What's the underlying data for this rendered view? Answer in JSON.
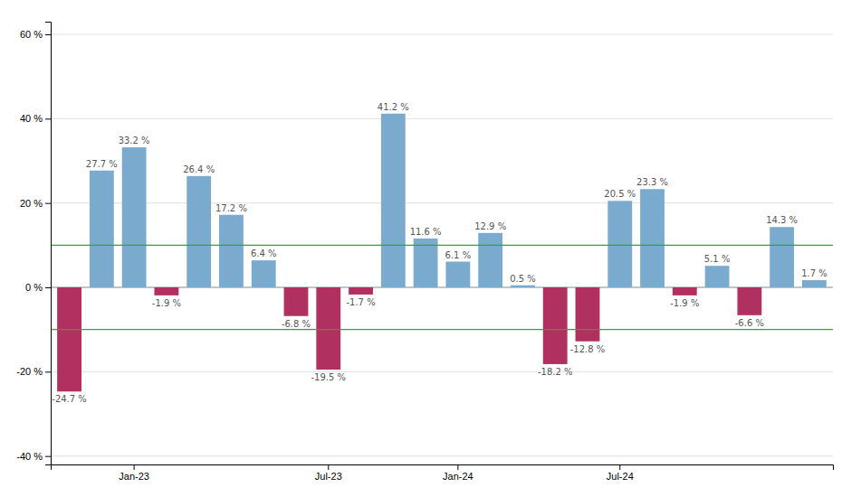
{
  "chart_data": {
    "type": "bar",
    "categories": [
      null,
      null,
      "Jan-23",
      null,
      null,
      null,
      null,
      null,
      "Jul-23",
      null,
      null,
      null,
      "Jan-24",
      null,
      null,
      null,
      null,
      "Jul-24",
      null,
      null,
      null,
      null,
      null,
      null
    ],
    "values": [
      -24.7,
      27.7,
      33.2,
      -1.9,
      26.4,
      17.2,
      6.4,
      -6.8,
      -19.5,
      -1.7,
      41.2,
      11.6,
      6.1,
      12.9,
      0.5,
      -18.2,
      -12.8,
      20.5,
      23.3,
      -1.9,
      5.1,
      -6.6,
      14.3,
      1.7
    ],
    "value_labels": [
      "-24.7 %",
      "27.7 %",
      "33.2 %",
      "-1.9 %",
      "26.4 %",
      "17.2 %",
      "6.4 %",
      "-6.8 %",
      "-19.5 %",
      "-1.7 %",
      "41.2 %",
      "11.6 %",
      "6.1 %",
      "12.9 %",
      "0.5 %",
      "-18.2 %",
      "-12.8 %",
      "20.5 %",
      "23.3 %",
      "-1.9 %",
      "5.1 %",
      "-6.6 %",
      "14.3 %",
      "1.7 %"
    ],
    "colors": [
      "#b03060",
      "#7baacf",
      "#7baacf",
      "#b03060",
      "#7baacf",
      "#7baacf",
      "#7baacf",
      "#b03060",
      "#b03060",
      "#b03060",
      "#7baacf",
      "#7baacf",
      "#7baacf",
      "#7baacf",
      "#7baacf",
      "#b03060",
      "#b03060",
      "#7baacf",
      "#7baacf",
      "#b03060",
      "#7baacf",
      "#b03060",
      "#7baacf",
      "#7baacf"
    ],
    "reference_lines": [
      10,
      -10
    ],
    "reference_line_color": "#3a9e3a",
    "ylim": [
      -42,
      63
    ],
    "yticks": [
      {
        "value": -40,
        "label": "-40 %"
      },
      {
        "value": -20,
        "label": "-20 %"
      },
      {
        "value": 0,
        "label": "0 %"
      },
      {
        "value": 20,
        "label": "20 %"
      },
      {
        "value": 40,
        "label": "40 %"
      },
      {
        "value": 60,
        "label": "60 %"
      }
    ],
    "grid": true,
    "data_labels": true
  }
}
